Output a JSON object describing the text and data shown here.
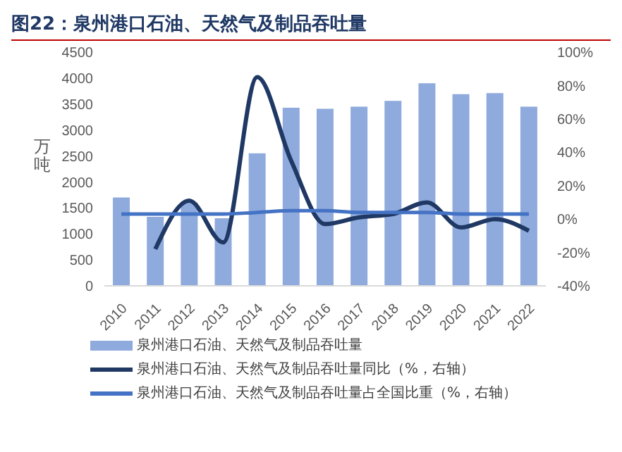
{
  "chart_data": {
    "type": "bar",
    "title": "图22：泉州港口石油、天然气及制品吞吐量",
    "ylabel": "万吨",
    "categories": [
      "2010",
      "2011",
      "2012",
      "2013",
      "2014",
      "2015",
      "2016",
      "2017",
      "2018",
      "2019",
      "2020",
      "2021",
      "2022"
    ],
    "series": [
      {
        "name": "泉州港口石油、天然气及制品吞吐量",
        "color": "#8faadc",
        "values": [
          1700,
          1330,
          1600,
          1300,
          2550,
          3430,
          3410,
          3450,
          3560,
          3900,
          3690,
          3710,
          3450
        ]
      },
      {
        "name": "泉州港口石油、天然气及制品吞吐量同比（%，右轴）",
        "type": "line",
        "axis": "y2",
        "color": "#1f3864",
        "values": [
          null,
          -18,
          11,
          -14,
          85,
          35,
          -3,
          1,
          3,
          10,
          -5,
          0,
          -7
        ]
      },
      {
        "name": "泉州港口石油、天然气及制品吞吐量占全国比重（%，右轴）",
        "type": "line",
        "axis": "y2",
        "color": "#4472c4",
        "values": [
          3,
          3,
          3,
          3,
          4,
          5,
          5,
          4,
          4,
          4,
          3,
          3,
          3
        ]
      }
    ],
    "ylim": [
      0,
      4500
    ],
    "yticks": [
      0,
      500,
      1000,
      1500,
      2000,
      2500,
      3000,
      3500,
      4000,
      4500
    ],
    "y2lim": [
      -40,
      100
    ],
    "y2ticks": [
      {
        "value": -40,
        "label": "-40%"
      },
      {
        "value": -20,
        "label": "-20%"
      },
      {
        "value": 0,
        "label": "0%"
      },
      {
        "value": 20,
        "label": "20%"
      },
      {
        "value": 40,
        "label": "40%"
      },
      {
        "value": 60,
        "label": "60%"
      },
      {
        "value": 80,
        "label": "80%"
      },
      {
        "value": 100,
        "label": "100%"
      }
    ],
    "grid": false,
    "legend": "bottom",
    "marker": "none",
    "line_style": "solid"
  }
}
